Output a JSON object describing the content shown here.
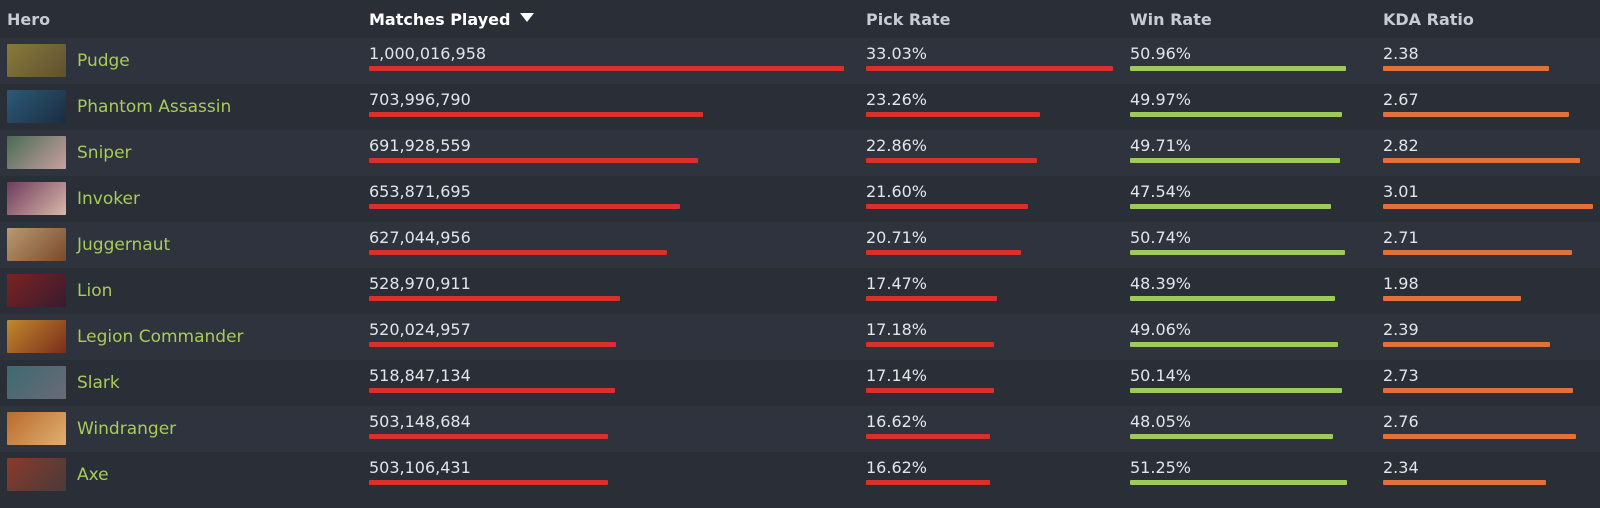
{
  "header": {
    "hero": "Hero",
    "matches": "Matches Played",
    "pick_rate": "Pick Rate",
    "win_rate": "Win Rate",
    "kda": "KDA Ratio"
  },
  "colors": {
    "hero_name": "#a8cb5b",
    "matches_bar": "#d9302e",
    "pick_bar": "#d9302e",
    "win_bar": "#9ccc57",
    "kda_bar": "#e2703a"
  },
  "rows": [
    {
      "hero": "Pudge",
      "matches": "1,000,016,958",
      "matches_n": 1000016958,
      "pick": "33.03%",
      "pick_n": 33.03,
      "win": "50.96%",
      "win_n": 50.96,
      "kda": "2.38",
      "kda_n": 2.38,
      "portrait": [
        "#8a7a3c",
        "#5d5030"
      ]
    },
    {
      "hero": "Phantom Assassin",
      "matches": "703,996,790",
      "matches_n": 703996790,
      "pick": "23.26%",
      "pick_n": 23.26,
      "win": "49.97%",
      "win_n": 49.97,
      "kda": "2.67",
      "kda_n": 2.67,
      "portrait": [
        "#2c5a78",
        "#1b2c40"
      ]
    },
    {
      "hero": "Sniper",
      "matches": "691,928,559",
      "matches_n": 691928559,
      "pick": "22.86%",
      "pick_n": 22.86,
      "win": "49.71%",
      "win_n": 49.71,
      "kda": "2.82",
      "kda_n": 2.82,
      "portrait": [
        "#4a6a55",
        "#c9a0a0"
      ]
    },
    {
      "hero": "Invoker",
      "matches": "653,871,695",
      "matches_n": 653871695,
      "pick": "21.60%",
      "pick_n": 21.6,
      "win": "47.54%",
      "win_n": 47.54,
      "kda": "3.01",
      "kda_n": 3.01,
      "portrait": [
        "#6e3b5e",
        "#d8b9a8"
      ]
    },
    {
      "hero": "Juggernaut",
      "matches": "627,044,956",
      "matches_n": 627044956,
      "pick": "20.71%",
      "pick_n": 20.71,
      "win": "50.74%",
      "win_n": 50.74,
      "kda": "2.71",
      "kda_n": 2.71,
      "portrait": [
        "#b89a70",
        "#7a4a2c"
      ]
    },
    {
      "hero": "Lion",
      "matches": "528,970,911",
      "matches_n": 528970911,
      "pick": "17.47%",
      "pick_n": 17.47,
      "win": "48.39%",
      "win_n": 48.39,
      "kda": "1.98",
      "kda_n": 1.98,
      "portrait": [
        "#7a2420",
        "#3a1a30"
      ]
    },
    {
      "hero": "Legion Commander",
      "matches": "520,024,957",
      "matches_n": 520024957,
      "pick": "17.18%",
      "pick_n": 17.18,
      "win": "49.06%",
      "win_n": 49.06,
      "kda": "2.39",
      "kda_n": 2.39,
      "portrait": [
        "#c08a2c",
        "#7a2c1c"
      ]
    },
    {
      "hero": "Slark",
      "matches": "518,847,134",
      "matches_n": 518847134,
      "pick": "17.14%",
      "pick_n": 17.14,
      "win": "50.14%",
      "win_n": 50.14,
      "kda": "2.73",
      "kda_n": 2.73,
      "portrait": [
        "#3c6a70",
        "#6a6a78"
      ]
    },
    {
      "hero": "Windranger",
      "matches": "503,148,684",
      "matches_n": 503148684,
      "pick": "16.62%",
      "pick_n": 16.62,
      "win": "48.05%",
      "win_n": 48.05,
      "kda": "2.76",
      "kda_n": 2.76,
      "portrait": [
        "#b86a2c",
        "#e0b070"
      ]
    },
    {
      "hero": "Axe",
      "matches": "503,106,431",
      "matches_n": 503106431,
      "pick": "16.62%",
      "pick_n": 16.62,
      "win": "51.25%",
      "win_n": 51.25,
      "kda": "2.34",
      "kda_n": 2.34,
      "portrait": [
        "#8a3a2a",
        "#4a3a3a"
      ]
    }
  ]
}
